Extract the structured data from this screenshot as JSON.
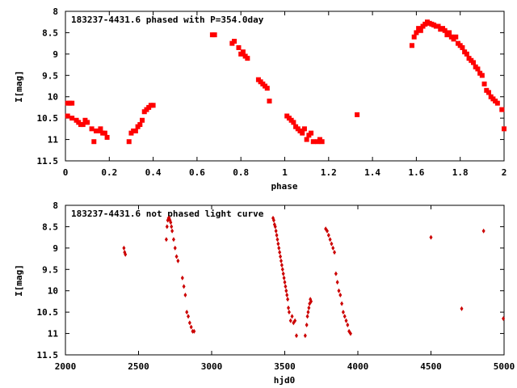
{
  "chart_data": [
    {
      "type": "scatter",
      "title": "183237-4431.6 phased with P=354.0day",
      "xlabel": "phase",
      "ylabel": "I[mag]",
      "xlim": [
        0,
        2
      ],
      "ylim": [
        8,
        11.5
      ],
      "y_inverted": true,
      "grid": false,
      "color": "#ff0000",
      "xticks": [
        0,
        0.2,
        0.4,
        0.6,
        0.8,
        1,
        1.2,
        1.4,
        1.6,
        1.8,
        2
      ],
      "xtick_labels": [
        "0",
        "0.2",
        "0.4",
        "0.6",
        "0.8",
        "1",
        "1.2",
        "1.4",
        "1.6",
        "1.8",
        "2"
      ],
      "yticks": [
        8,
        8.5,
        9,
        9.5,
        10,
        10.5,
        11,
        11.5
      ],
      "ytick_labels": [
        "8",
        "8.5",
        "9",
        "9.5",
        "10",
        "10.5",
        "11",
        "11.5"
      ],
      "series": [
        {
          "x": [
            0.01,
            0.02,
            0.03,
            0.01,
            0.03,
            0.05,
            0.06,
            0.07,
            0.08,
            0.09,
            0.1,
            0.12,
            0.13,
            0.14,
            0.15,
            0.16,
            0.17,
            0.18,
            0.19,
            0.29,
            0.3,
            0.31,
            0.32,
            0.33,
            0.34,
            0.35,
            0.36,
            0.37,
            0.38,
            0.39,
            0.4,
            0.67,
            0.68,
            0.76,
            0.77,
            0.79,
            0.8,
            0.81,
            0.82,
            0.83,
            0.88,
            0.89,
            0.9,
            0.91,
            0.92,
            0.93,
            1.01,
            1.02,
            1.03,
            1.04,
            1.05,
            1.06,
            1.07,
            1.08,
            1.09,
            1.1,
            1.11,
            1.12,
            1.13,
            1.15,
            1.16,
            1.17,
            1.33,
            1.58,
            1.59,
            1.6,
            1.61,
            1.62,
            1.63,
            1.64,
            1.65,
            1.66,
            1.67,
            1.68,
            1.69,
            1.7,
            1.71,
            1.72,
            1.73,
            1.74,
            1.75,
            1.76,
            1.77,
            1.78,
            1.79,
            1.8,
            1.81,
            1.82,
            1.83,
            1.84,
            1.85,
            1.86,
            1.87,
            1.88,
            1.89,
            1.9,
            1.91,
            1.92,
            1.93,
            1.94,
            1.95,
            1.96,
            1.97,
            1.99,
            2.0
          ],
          "y": [
            10.15,
            10.15,
            10.15,
            10.45,
            10.5,
            10.55,
            10.6,
            10.65,
            10.65,
            10.55,
            10.6,
            10.75,
            11.05,
            10.8,
            10.8,
            10.75,
            10.85,
            10.85,
            10.95,
            11.05,
            10.85,
            10.8,
            10.8,
            10.7,
            10.65,
            10.55,
            10.35,
            10.3,
            10.25,
            10.2,
            10.2,
            8.55,
            8.55,
            8.75,
            8.7,
            8.85,
            9.0,
            8.95,
            9.05,
            9.1,
            9.6,
            9.65,
            9.7,
            9.75,
            9.8,
            10.1,
            10.45,
            10.5,
            10.55,
            10.6,
            10.7,
            10.75,
            10.8,
            10.85,
            10.75,
            11.0,
            10.9,
            10.85,
            11.05,
            11.05,
            11.0,
            11.05,
            10.42,
            8.8,
            8.6,
            8.5,
            8.4,
            8.45,
            8.35,
            8.3,
            8.25,
            8.28,
            8.3,
            8.32,
            8.35,
            8.35,
            8.42,
            8.4,
            8.45,
            8.55,
            8.5,
            8.6,
            8.65,
            8.6,
            8.75,
            8.8,
            8.85,
            8.95,
            9.0,
            9.1,
            9.15,
            9.2,
            9.3,
            9.35,
            9.45,
            9.5,
            9.7,
            9.85,
            9.9,
            10.0,
            10.05,
            10.1,
            10.15,
            10.3,
            10.75
          ]
        }
      ]
    },
    {
      "type": "scatter",
      "title": "183237-4431.6 not phased light curve",
      "xlabel": "hjd0",
      "ylabel": "I[mag]",
      "xlim": [
        2000,
        5000
      ],
      "ylim": [
        8,
        11.5
      ],
      "y_inverted": true,
      "grid": false,
      "color": "#cc0000",
      "xticks": [
        2000,
        2500,
        3000,
        3500,
        4000,
        4500,
        5000
      ],
      "xtick_labels": [
        "2000",
        "2500",
        "3000",
        "3500",
        "4000",
        "4500",
        "5000"
      ],
      "yticks": [
        8,
        8.5,
        9,
        9.5,
        10,
        10.5,
        11,
        11.5
      ],
      "ytick_labels": [
        "8",
        "8.5",
        "9",
        "9.5",
        "10",
        "10.5",
        "11",
        "11.5"
      ],
      "series": [
        {
          "x": [
            2400,
            2405,
            2410,
            2690,
            2695,
            2700,
            2705,
            2710,
            2715,
            2720,
            2725,
            2730,
            2740,
            2750,
            2760,
            2770,
            2800,
            2810,
            2820,
            2830,
            2840,
            2850,
            2860,
            2870,
            2880,
            3420,
            3425,
            3430,
            3435,
            3440,
            3445,
            3450,
            3455,
            3460,
            3465,
            3470,
            3475,
            3480,
            3485,
            3490,
            3495,
            3500,
            3505,
            3510,
            3515,
            3520,
            3525,
            3530,
            3540,
            3550,
            3560,
            3570,
            3580,
            3640,
            3650,
            3655,
            3660,
            3665,
            3670,
            3675,
            3680,
            3780,
            3790,
            3800,
            3810,
            3820,
            3830,
            3840,
            3850,
            3860,
            3870,
            3880,
            3890,
            3900,
            3910,
            3920,
            3930,
            3940,
            3950,
            4500,
            4710,
            4860,
            4995
          ],
          "y": [
            9.0,
            9.1,
            9.15,
            8.8,
            8.5,
            8.35,
            8.3,
            8.3,
            8.35,
            8.4,
            8.5,
            8.6,
            8.8,
            9.0,
            9.2,
            9.3,
            9.7,
            9.9,
            10.1,
            10.5,
            10.6,
            10.75,
            10.85,
            10.95,
            10.95,
            8.3,
            8.35,
            8.45,
            8.5,
            8.6,
            8.7,
            8.8,
            8.9,
            9.0,
            9.1,
            9.2,
            9.3,
            9.4,
            9.5,
            9.6,
            9.7,
            9.8,
            9.9,
            10.0,
            10.1,
            10.2,
            10.4,
            10.5,
            10.7,
            10.6,
            10.75,
            10.7,
            11.05,
            11.05,
            10.8,
            10.6,
            10.5,
            10.4,
            10.3,
            10.2,
            10.25,
            8.55,
            8.6,
            8.7,
            8.8,
            8.9,
            9.0,
            9.1,
            9.6,
            9.8,
            10.0,
            10.1,
            10.3,
            10.5,
            10.6,
            10.7,
            10.8,
            10.95,
            11.0,
            8.75,
            10.42,
            8.6,
            10.65
          ]
        }
      ]
    }
  ]
}
